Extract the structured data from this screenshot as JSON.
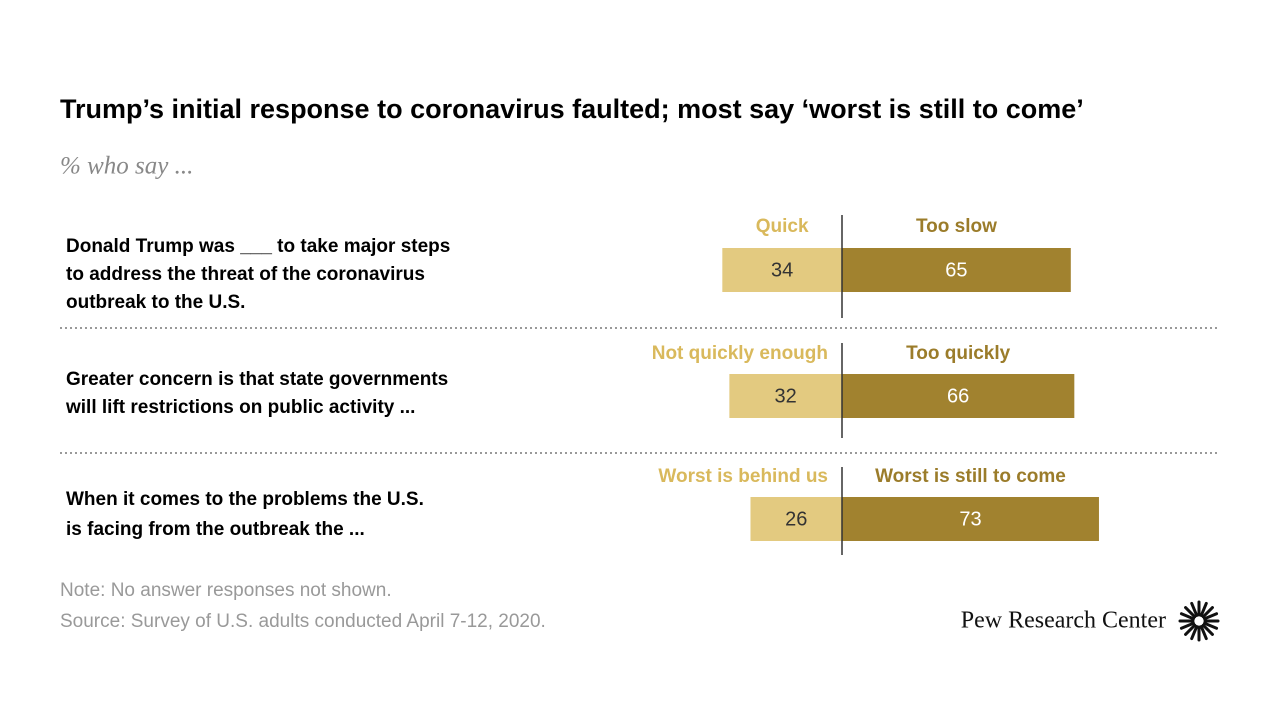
{
  "chart_data": {
    "type": "diverging_bar",
    "title": "Trump’s initial response to coronavirus faulted; most say ‘worst is still to come’",
    "subtitle": "% who say ...",
    "colors": [
      "#e3ca80",
      "#a1822f"
    ],
    "label_colors": [
      "#d9b95c",
      "#9b7c2a"
    ],
    "rows": [
      {
        "question_lines": [
          "Donald Trump was ___ to take major steps",
          "to address the threat of the coronavirus",
          "outbreak to the U.S."
        ],
        "labels": [
          "Quick",
          "Too slow"
        ],
        "values": [
          34,
          65
        ]
      },
      {
        "question_lines": [
          "Greater concern is that state governments",
          "will lift restrictions on public activity ..."
        ],
        "labels": [
          "Not quickly enough",
          "Too quickly"
        ],
        "values": [
          32,
          66
        ]
      },
      {
        "question_lines": [
          "When it comes to the problems the U.S.",
          "is facing from the outbreak the ..."
        ],
        "labels": [
          "Worst is behind us",
          "Worst is still to come"
        ],
        "values": [
          26,
          73
        ]
      }
    ],
    "note": "Note: No answer responses not shown.",
    "source": "Source: Survey of U.S. adults conducted April 7-12, 2020.",
    "brand": "Pew Research Center"
  }
}
